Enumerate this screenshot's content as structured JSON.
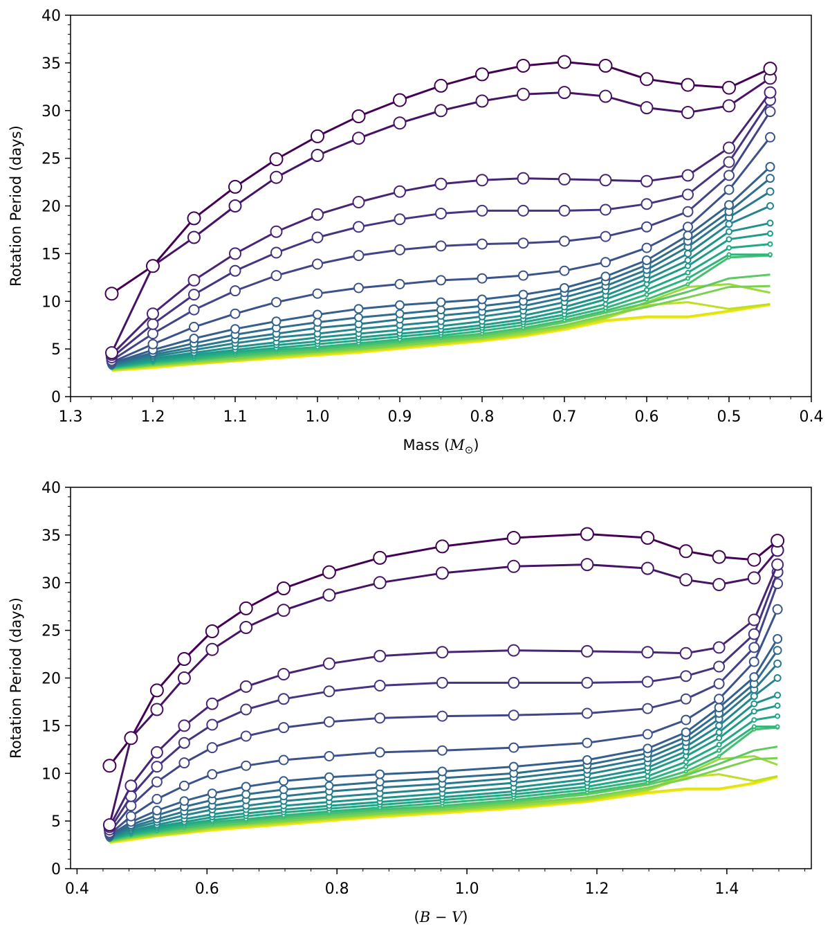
{
  "chart_data": [
    {
      "type": "line",
      "xlabel_text": "Mass (",
      "xlabel_sym": "M",
      "xlabel_sub": "⊙",
      "xlabel_close": ")",
      "ylabel": "Rotation Period (days)",
      "xlim": [
        1.3,
        0.4
      ],
      "ylim": [
        0,
        40
      ],
      "xticks": [
        1.3,
        1.2,
        1.1,
        1.0,
        0.9,
        0.8,
        0.7,
        0.6,
        0.5,
        0.4
      ],
      "xtick_labels": [
        "1.3",
        "1.2",
        "1.1",
        "1.0",
        "0.9",
        "0.8",
        "0.7",
        "0.6",
        "0.5",
        "0.4"
      ],
      "yticks": [
        0,
        5,
        10,
        15,
        20,
        25,
        30,
        35,
        40
      ],
      "ytick_labels": [
        "0",
        "5",
        "10",
        "15",
        "20",
        "25",
        "30",
        "35",
        "40"
      ],
      "x": [
        1.25,
        1.2,
        1.15,
        1.1,
        1.05,
        1.0,
        0.95,
        0.9,
        0.85,
        0.8,
        0.75,
        0.7,
        0.65,
        0.6,
        0.55,
        0.5,
        0.45
      ]
    },
    {
      "type": "line",
      "xlabel_open": "(",
      "xlabel_sym": "B − V",
      "xlabel_close": ")",
      "ylabel": "Rotation Period (days)",
      "xlim": [
        0.39,
        1.53
      ],
      "ylim": [
        0,
        40
      ],
      "xticks": [
        0.4,
        0.6,
        0.8,
        1.0,
        1.2,
        1.4
      ],
      "xtick_labels": [
        "0.4",
        "0.6",
        "0.8",
        "1.0",
        "1.2",
        "1.4"
      ],
      "yticks": [
        0,
        5,
        10,
        15,
        20,
        25,
        30,
        35,
        40
      ],
      "ytick_labels": [
        "0",
        "5",
        "10",
        "15",
        "20",
        "25",
        "30",
        "35",
        "40"
      ],
      "x": [
        0.45,
        0.483,
        0.523,
        0.565,
        0.608,
        0.66,
        0.718,
        0.788,
        0.866,
        0.962,
        1.072,
        1.185,
        1.278,
        1.337,
        1.388,
        1.442,
        1.478
      ]
    }
  ],
  "series": [
    {
      "color": "#440154",
      "marker": 18,
      "values": [
        10.8,
        13.7,
        18.7,
        22.0,
        24.9,
        27.3,
        29.4,
        31.1,
        32.6,
        33.8,
        34.7,
        35.1,
        34.7,
        33.3,
        32.7,
        32.4,
        34.4
      ]
    },
    {
      "color": "#471365",
      "marker": 17,
      "values": [
        4.6,
        13.7,
        16.7,
        20.0,
        23.0,
        25.3,
        27.1,
        28.7,
        30.0,
        31.0,
        31.7,
        31.9,
        31.5,
        30.3,
        29.8,
        30.5,
        33.4
      ]
    },
    {
      "color": "#482475",
      "marker": 16,
      "values": [
        4.4,
        8.7,
        12.2,
        15.0,
        17.3,
        19.1,
        20.4,
        21.5,
        22.3,
        22.7,
        22.9,
        22.8,
        22.7,
        22.6,
        23.2,
        26.1,
        31.9
      ]
    },
    {
      "color": "#463480",
      "marker": 15,
      "values": [
        4.1,
        7.6,
        10.7,
        13.2,
        15.1,
        16.7,
        17.8,
        18.6,
        19.2,
        19.5,
        19.5,
        19.5,
        19.6,
        20.2,
        21.2,
        24.6,
        31.1
      ]
    },
    {
      "color": "#414487",
      "marker": 14,
      "values": [
        3.8,
        6.6,
        9.1,
        11.1,
        12.7,
        13.9,
        14.8,
        15.4,
        15.8,
        16.0,
        16.1,
        16.3,
        16.8,
        17.8,
        19.4,
        23.2,
        29.9
      ]
    },
    {
      "color": "#3b528b",
      "marker": 13,
      "values": [
        3.6,
        5.5,
        7.3,
        8.7,
        9.9,
        10.8,
        11.4,
        11.8,
        12.2,
        12.4,
        12.7,
        13.2,
        14.1,
        15.6,
        17.8,
        21.7,
        27.2
      ]
    },
    {
      "color": "#355f8d",
      "marker": 12,
      "values": [
        3.5,
        4.9,
        6.1,
        7.1,
        7.9,
        8.6,
        9.2,
        9.6,
        9.9,
        10.2,
        10.7,
        11.4,
        12.6,
        14.3,
        16.9,
        20.1,
        24.1
      ]
    },
    {
      "color": "#2f6c8e",
      "marker": 11,
      "values": [
        3.4,
        4.6,
        5.6,
        6.5,
        7.2,
        7.8,
        8.3,
        8.7,
        9.1,
        9.5,
        10.0,
        10.9,
        12.1,
        13.8,
        16.3,
        19.4,
        22.9
      ]
    },
    {
      "color": "#2a788e",
      "marker": 10,
      "values": [
        3.3,
        4.4,
        5.2,
        6.0,
        6.6,
        7.2,
        7.6,
        8.1,
        8.5,
        8.9,
        9.5,
        10.4,
        11.6,
        13.3,
        15.7,
        18.8,
        21.5
      ]
    },
    {
      "color": "#25848e",
      "marker": 9,
      "values": [
        3.25,
        4.2,
        4.9,
        5.6,
        6.2,
        6.6,
        7.1,
        7.5,
        7.9,
        8.4,
        9.0,
        9.9,
        11.1,
        12.8,
        15.0,
        18.1,
        20.0
      ]
    },
    {
      "color": "#21918c",
      "marker": 8,
      "values": [
        3.2,
        4.0,
        4.6,
        5.2,
        5.7,
        6.2,
        6.6,
        7.0,
        7.4,
        7.9,
        8.5,
        9.4,
        10.6,
        12.3,
        14.3,
        17.3,
        18.2
      ]
    },
    {
      "color": "#1e9c89",
      "marker": 7,
      "values": [
        3.15,
        3.85,
        4.4,
        4.9,
        5.4,
        5.8,
        6.2,
        6.6,
        7.0,
        7.5,
        8.1,
        9.0,
        10.2,
        11.8,
        13.7,
        16.5,
        17.1
      ]
    },
    {
      "color": "#22a884",
      "marker": 6,
      "values": [
        3.1,
        3.7,
        4.2,
        4.7,
        5.1,
        5.5,
        5.9,
        6.3,
        6.7,
        7.2,
        7.8,
        8.6,
        9.7,
        11.2,
        13.0,
        15.6,
        16.0
      ]
    },
    {
      "color": "#2fb47c",
      "marker": 5,
      "values": [
        3.05,
        3.6,
        4.0,
        4.5,
        4.9,
        5.2,
        5.6,
        6.0,
        6.4,
        6.9,
        7.5,
        8.3,
        9.3,
        10.7,
        12.4,
        14.9,
        14.9
      ]
    },
    {
      "color": "#44bf70",
      "marker": 4,
      "values": [
        3.0,
        3.5,
        3.9,
        4.3,
        4.7,
        5.0,
        5.4,
        5.8,
        6.2,
        6.6,
        7.2,
        8.0,
        9.0,
        10.2,
        11.8,
        14.6,
        14.8
      ]
    },
    {
      "color": "#5ec962",
      "marker": 0,
      "values": [
        2.95,
        3.4,
        3.8,
        4.2,
        4.5,
        4.8,
        5.2,
        5.6,
        6.0,
        6.4,
        7.0,
        7.8,
        8.8,
        9.8,
        11.0,
        12.4,
        12.8
      ]
    },
    {
      "color": "#7ad151",
      "marker": 0,
      "values": [
        2.9,
        3.3,
        3.7,
        4.0,
        4.4,
        4.7,
        5.0,
        5.4,
        5.8,
        6.2,
        6.8,
        7.5,
        8.5,
        9.4,
        10.4,
        11.5,
        11.6
      ]
    },
    {
      "color": "#9bd93c",
      "marker": 0,
      "values": [
        2.85,
        3.25,
        3.6,
        3.9,
        4.3,
        4.6,
        4.9,
        5.3,
        5.7,
        6.1,
        6.6,
        7.3,
        8.3,
        9.9,
        11.5,
        11.8,
        10.9
      ]
    },
    {
      "color": "#bddf26",
      "marker": 0,
      "values": [
        2.8,
        3.2,
        3.5,
        3.8,
        4.2,
        4.5,
        4.8,
        5.2,
        5.6,
        6.0,
        6.5,
        7.2,
        8.2,
        9.6,
        9.9,
        9.2,
        9.7
      ]
    },
    {
      "color": "#dfe318",
      "marker": 0,
      "values": [
        2.75,
        3.1,
        3.45,
        3.75,
        4.1,
        4.4,
        4.7,
        5.1,
        5.5,
        5.9,
        6.4,
        7.1,
        8.0,
        8.4,
        8.4,
        9.0,
        9.7
      ]
    },
    {
      "color": "#fde725",
      "marker": 0,
      "values": [
        2.7,
        3.0,
        3.4,
        3.7,
        4.0,
        4.3,
        4.6,
        5.0,
        5.4,
        5.8,
        6.3,
        7.0,
        7.9,
        8.3,
        8.3,
        8.9,
        9.6
      ]
    }
  ]
}
